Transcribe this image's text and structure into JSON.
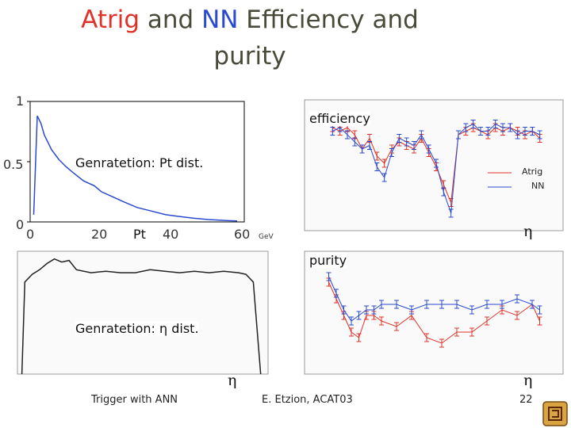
{
  "title": {
    "part1": "Atrig",
    "part2": " and ",
    "part3": "NN",
    "part4": " Efficiency and",
    "line2": "purity"
  },
  "colors": {
    "red": "#e0322a",
    "blue": "#2a4ad0",
    "grey": "#4a4a3a"
  },
  "labels": {
    "pt_dist": "Genratetion: Pt dist.",
    "eta_dist": "Genratetion: η dist.",
    "pt_xlabel": "Pt",
    "gev": "GeV",
    "efficiency": "efficiency",
    "purity": "purity",
    "eta": "η",
    "legend_atrig": "Atrig",
    "legend_nn": "NN"
  },
  "footer": {
    "left": "Trigger with ANN",
    "center": "E. Etzion,  ACAT03",
    "page": "22"
  },
  "chart_data": [
    {
      "type": "line",
      "title": "Genratetion: Pt dist.",
      "xlabel": "Pt",
      "unit": "GeV",
      "xlim": [
        0,
        60
      ],
      "ylim": [
        0,
        1
      ],
      "xticks": [
        "0",
        "20",
        "40",
        "60"
      ],
      "yticks": [
        "0",
        "0.5",
        "1"
      ],
      "x": [
        1,
        2,
        3,
        4,
        5,
        6,
        8,
        10,
        12,
        15,
        18,
        20,
        23,
        26,
        30,
        34,
        38,
        42,
        46,
        50,
        55,
        58
      ],
      "y": [
        0.06,
        0.88,
        0.82,
        0.72,
        0.66,
        0.6,
        0.52,
        0.46,
        0.41,
        0.34,
        0.3,
        0.25,
        0.21,
        0.17,
        0.12,
        0.09,
        0.06,
        0.045,
        0.03,
        0.02,
        0.012,
        0.008
      ]
    },
    {
      "type": "line",
      "title": "efficiency",
      "xlabel": "η",
      "xlim": [
        1.0,
        2.5
      ],
      "ylim": [
        0.97,
        1.0
      ],
      "legend": [
        "Atrig",
        "NN"
      ],
      "series": [
        {
          "name": "Atrig",
          "x": [
            1.05,
            1.1,
            1.15,
            1.2,
            1.25,
            1.3,
            1.35,
            1.4,
            1.45,
            1.5,
            1.55,
            1.6,
            1.65,
            1.7,
            1.75,
            1.8,
            1.85,
            1.9,
            1.95,
            2.0,
            2.05,
            2.1,
            2.15,
            2.2,
            2.25,
            2.3,
            2.35,
            2.4,
            2.45
          ],
          "y": [
            0.996,
            0.995,
            0.996,
            0.994,
            0.99,
            0.993,
            0.988,
            0.986,
            0.99,
            0.992,
            0.991,
            0.99,
            0.993,
            0.989,
            0.985,
            0.98,
            0.975,
            0.994,
            0.995,
            0.996,
            0.995,
            0.994,
            0.996,
            0.995,
            0.996,
            0.995,
            0.994,
            0.995,
            0.993
          ]
        },
        {
          "name": "NN",
          "x": [
            1.05,
            1.1,
            1.15,
            1.2,
            1.25,
            1.3,
            1.35,
            1.4,
            1.45,
            1.5,
            1.55,
            1.6,
            1.65,
            1.7,
            1.75,
            1.8,
            1.85,
            1.9,
            1.95,
            2.0,
            2.05,
            2.1,
            2.15,
            2.2,
            2.25,
            2.3,
            2.35,
            2.4,
            2.45
          ],
          "y": [
            0.995,
            0.996,
            0.994,
            0.992,
            0.99,
            0.991,
            0.985,
            0.982,
            0.989,
            0.993,
            0.992,
            0.991,
            0.994,
            0.99,
            0.986,
            0.978,
            0.972,
            0.994,
            0.996,
            0.997,
            0.995,
            0.995,
            0.997,
            0.996,
            0.996,
            0.994,
            0.995,
            0.995,
            0.994
          ]
        }
      ]
    },
    {
      "type": "line",
      "title": "Genratetion: η dist.",
      "xlabel": "η",
      "xlim": [
        0.9,
        2.6
      ],
      "ylim": [
        0,
        0.8
      ],
      "x": [
        0.93,
        0.95,
        1.0,
        1.05,
        1.1,
        1.15,
        1.2,
        1.25,
        1.3,
        1.4,
        1.5,
        1.6,
        1.7,
        1.8,
        1.9,
        2.0,
        2.1,
        2.2,
        2.3,
        2.4,
        2.45,
        2.5,
        2.55
      ],
      "y": [
        0.0,
        0.6,
        0.65,
        0.68,
        0.72,
        0.75,
        0.73,
        0.74,
        0.68,
        0.66,
        0.67,
        0.66,
        0.66,
        0.68,
        0.67,
        0.66,
        0.67,
        0.66,
        0.67,
        0.66,
        0.65,
        0.6,
        0.0
      ]
    },
    {
      "type": "line",
      "title": "purity",
      "xlabel": "η",
      "xlim": [
        1.0,
        2.5
      ],
      "ylim": [
        0.8,
        1.0
      ],
      "series": [
        {
          "name": "Atrig",
          "x": [
            1.05,
            1.1,
            1.15,
            1.2,
            1.25,
            1.3,
            1.35,
            1.4,
            1.5,
            1.6,
            1.7,
            1.8,
            1.9,
            2.0,
            2.1,
            2.2,
            2.3,
            2.4,
            2.45
          ],
          "y": [
            0.96,
            0.93,
            0.9,
            0.87,
            0.86,
            0.9,
            0.9,
            0.89,
            0.88,
            0.9,
            0.86,
            0.85,
            0.87,
            0.87,
            0.89,
            0.91,
            0.9,
            0.92,
            0.89
          ]
        },
        {
          "name": "NN",
          "x": [
            1.05,
            1.1,
            1.15,
            1.2,
            1.25,
            1.3,
            1.35,
            1.4,
            1.5,
            1.6,
            1.7,
            1.8,
            1.9,
            2.0,
            2.1,
            2.2,
            2.3,
            2.4,
            2.45
          ],
          "y": [
            0.97,
            0.94,
            0.91,
            0.89,
            0.9,
            0.91,
            0.91,
            0.92,
            0.92,
            0.91,
            0.92,
            0.92,
            0.92,
            0.91,
            0.92,
            0.92,
            0.93,
            0.92,
            0.91
          ]
        }
      ]
    }
  ]
}
